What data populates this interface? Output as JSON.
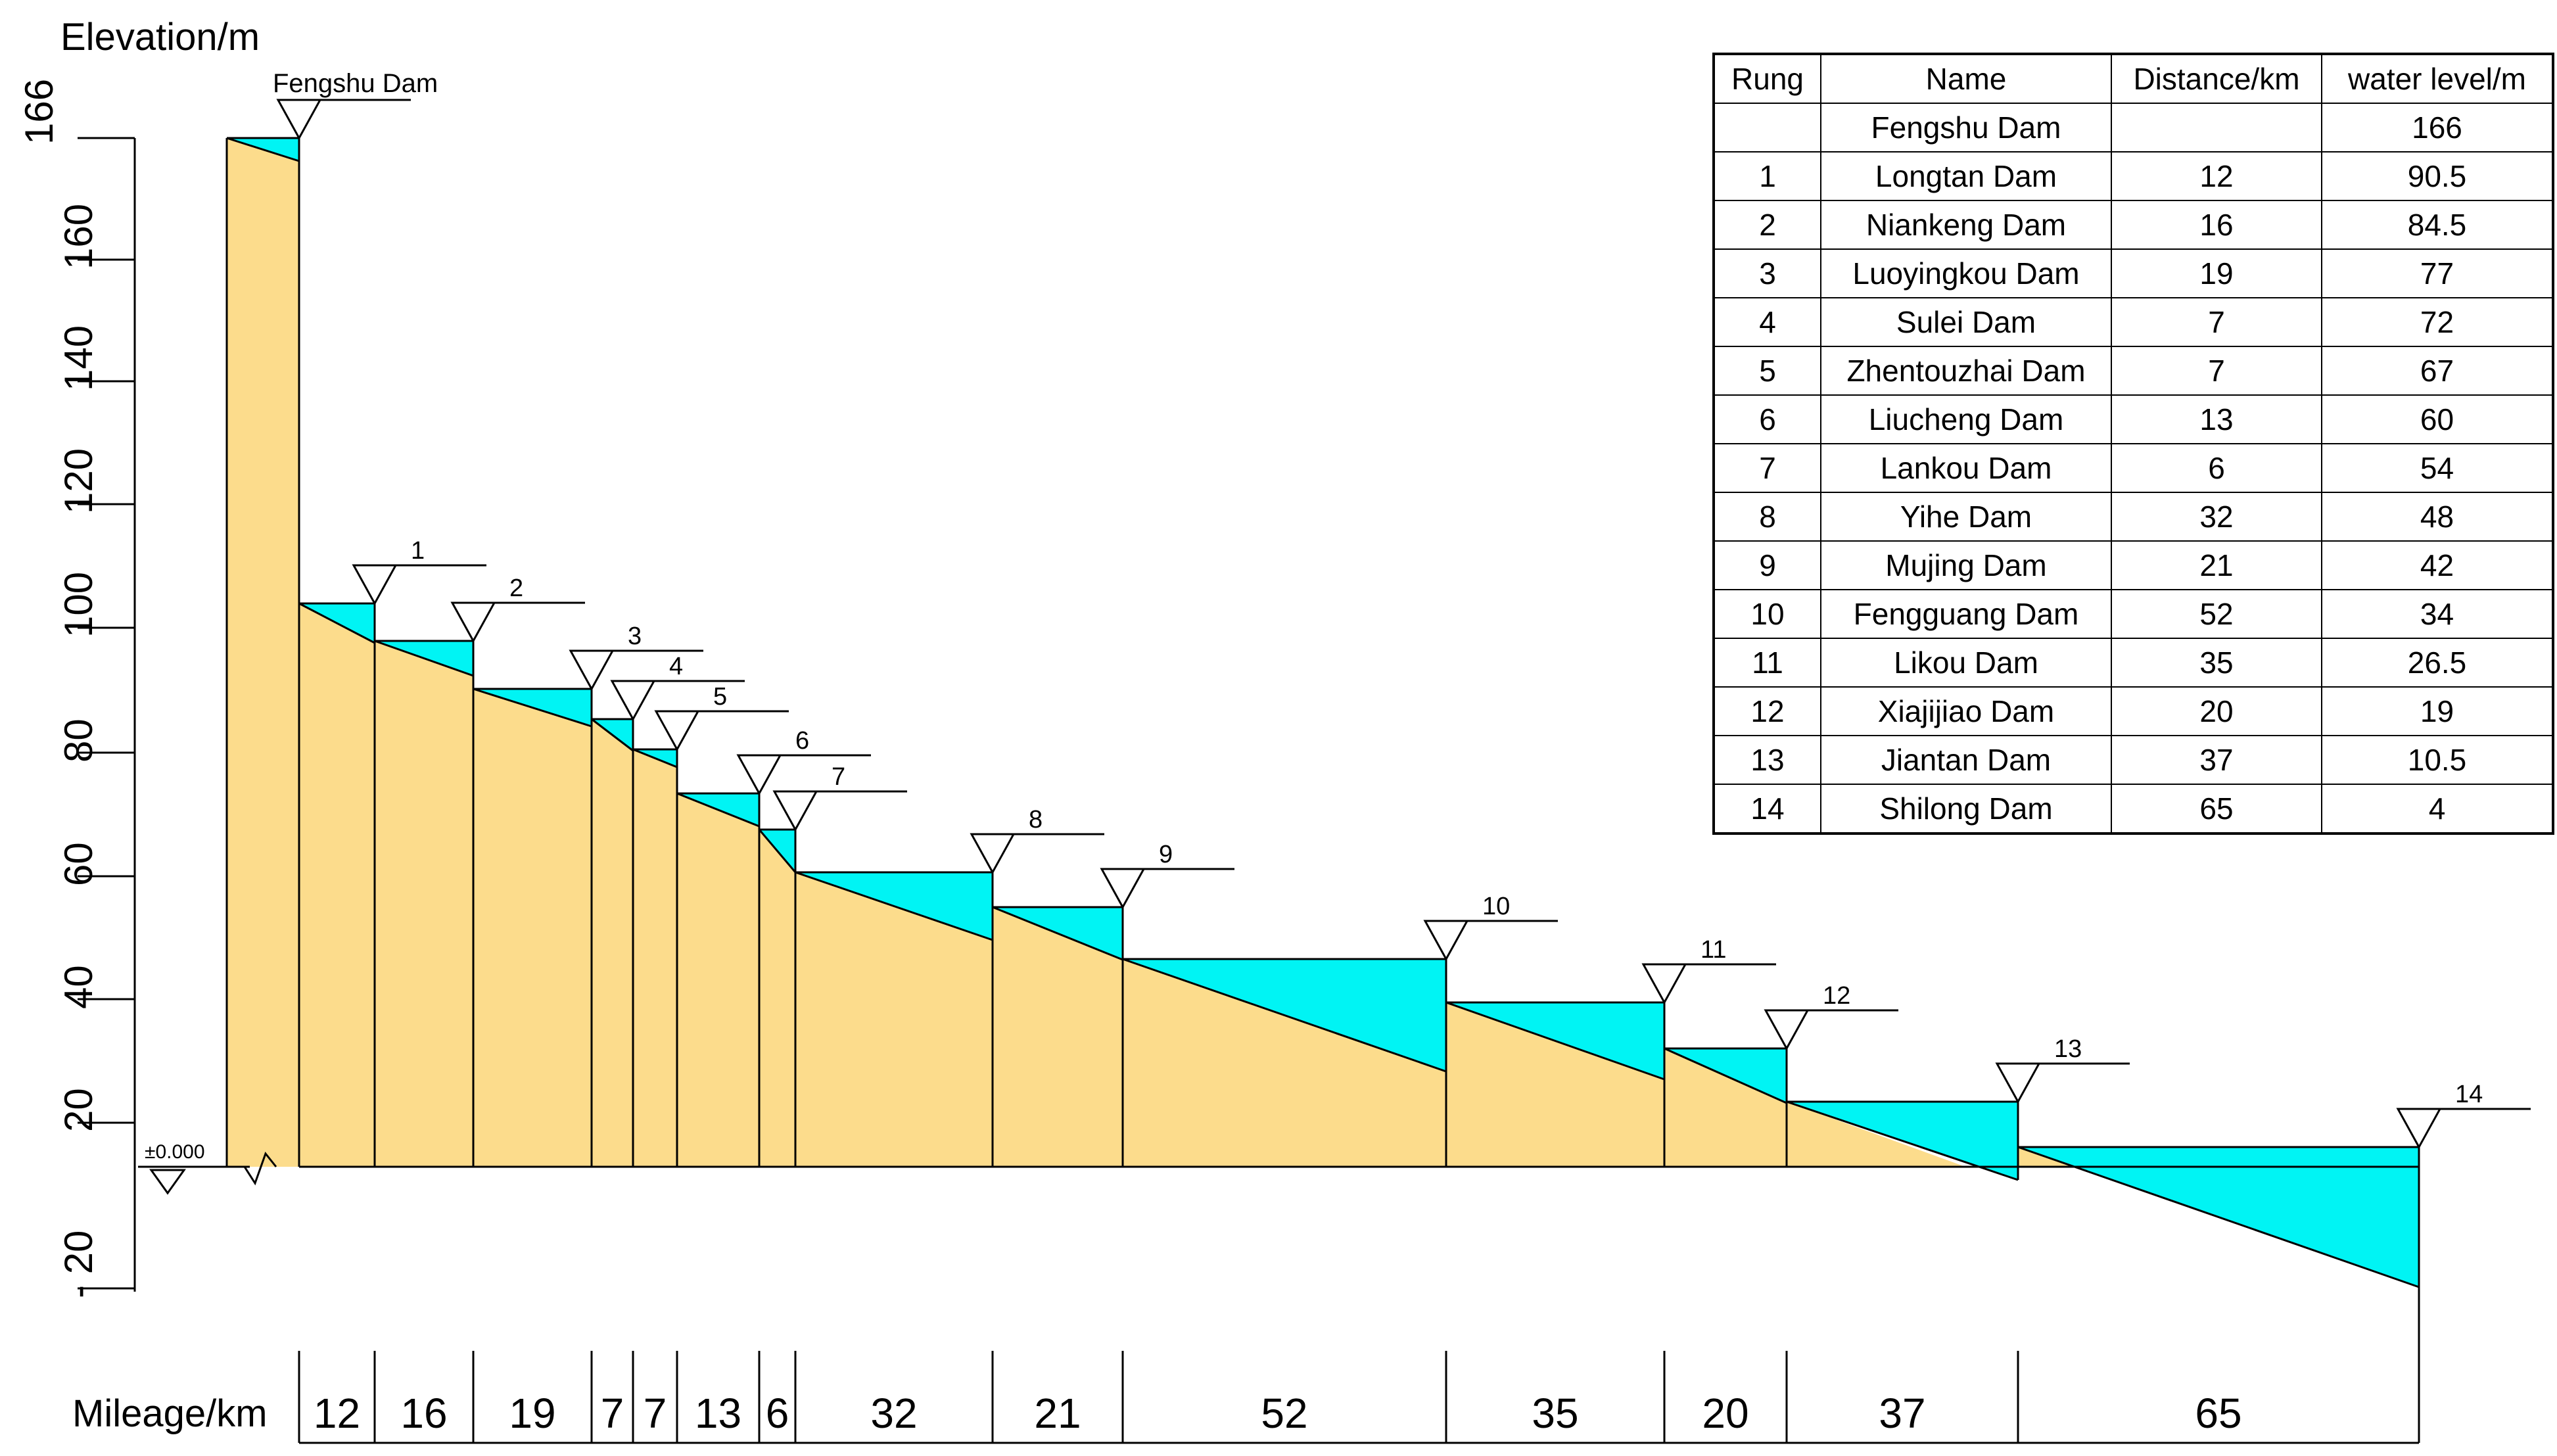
{
  "axis": {
    "y_title": "Elevation/m",
    "x_title": "Mileage/km",
    "top_value": "166",
    "zero_label": "±0.000",
    "ticks": [
      "160",
      "140",
      "120",
      "100",
      "80",
      "60",
      "40",
      "20",
      "- 20"
    ]
  },
  "reservoir_top_label": "Fengshu Dam",
  "table": {
    "headers": [
      "Rung",
      "Name",
      "Distance/km",
      "water level/m"
    ],
    "rows": [
      [
        "",
        "Fengshu Dam",
        "",
        "166"
      ],
      [
        "1",
        "Longtan Dam",
        "12",
        "90.5"
      ],
      [
        "2",
        "Niankeng Dam",
        "16",
        "84.5"
      ],
      [
        "3",
        "Luoyingkou Dam",
        "19",
        "77"
      ],
      [
        "4",
        "Sulei Dam",
        "7",
        "72"
      ],
      [
        "5",
        "Zhentouzhai Dam",
        "7",
        "67"
      ],
      [
        "6",
        "Liucheng Dam",
        "13",
        "60"
      ],
      [
        "7",
        "Lankou Dam",
        "6",
        "54"
      ],
      [
        "8",
        "Yihe Dam",
        "32",
        "48"
      ],
      [
        "9",
        "Mujing Dam",
        "21",
        "42"
      ],
      [
        "10",
        "Fengguang Dam",
        "52",
        "34"
      ],
      [
        "11",
        "Likou Dam",
        "35",
        "26.5"
      ],
      [
        "12",
        "Xiajijiao Dam",
        "20",
        "19"
      ],
      [
        "13",
        "Jiantan Dam",
        "37",
        "10.5"
      ],
      [
        "14",
        "Shilong Dam",
        "65",
        "4"
      ]
    ]
  },
  "dam_labels": [
    "1",
    "2",
    "3",
    "4",
    "5",
    "6",
    "7",
    "8",
    "9",
    "10",
    "11",
    "12",
    "13",
    "14"
  ],
  "mileage": [
    "12",
    "16",
    "19",
    "7",
    "7",
    "13",
    "6",
    "32",
    "21",
    "52",
    "35",
    "20",
    "37",
    "65"
  ],
  "colors": {
    "terrain": "#fcdc8c",
    "water": "#00f4f4",
    "line": "#000000"
  }
}
